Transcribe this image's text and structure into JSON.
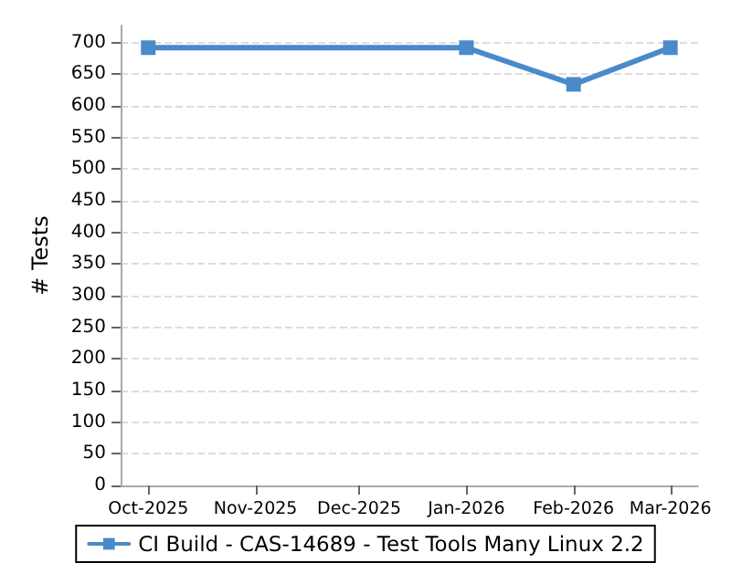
{
  "chart_data": {
    "type": "line",
    "ylabel": "# Tests",
    "x": [
      "2025-10-01",
      "2026-01-01",
      "2026-02-01",
      "2026-03-01"
    ],
    "series": [
      {
        "name": "CI Build - CAS-14689 - Test Tools Many Linux 2.2",
        "color": "#4a8ac9",
        "values": [
          692,
          692,
          634,
          692
        ]
      }
    ],
    "xlim": [
      "2025-09-23",
      "2026-03-09"
    ],
    "xticks": [
      {
        "value": "2025-10-01",
        "label": "Oct-2025"
      },
      {
        "value": "2025-11-01",
        "label": "Nov-2025"
      },
      {
        "value": "2025-12-01",
        "label": "Dec-2025"
      },
      {
        "value": "2026-01-01",
        "label": "Jan-2026"
      },
      {
        "value": "2026-02-01",
        "label": "Feb-2026"
      },
      {
        "value": "2026-03-01",
        "label": "Mar-2026"
      }
    ],
    "ylim": [
      0,
      727
    ],
    "yticks": [
      0,
      50,
      100,
      150,
      200,
      250,
      300,
      350,
      400,
      450,
      500,
      550,
      600,
      650,
      700
    ],
    "grid": "y",
    "legend": "bottom",
    "marker": "square",
    "line_style": "solid"
  }
}
